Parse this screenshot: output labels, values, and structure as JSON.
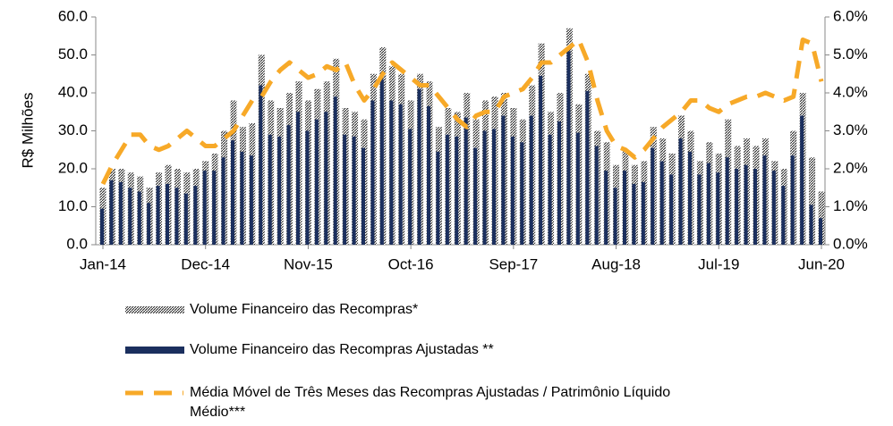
{
  "chart_data": {
    "type": "bar",
    "y_label": "R$ Milhões",
    "categories": [
      "Jan-14",
      null,
      null,
      null,
      null,
      null,
      null,
      null,
      null,
      null,
      null,
      "Dec-14",
      null,
      null,
      null,
      null,
      null,
      null,
      null,
      null,
      null,
      null,
      "Nov-15",
      null,
      null,
      null,
      null,
      null,
      null,
      null,
      null,
      null,
      null,
      "Oct-16",
      null,
      null,
      null,
      null,
      null,
      null,
      null,
      null,
      null,
      null,
      "Sep-17",
      null,
      null,
      null,
      null,
      null,
      null,
      null,
      null,
      null,
      null,
      "Aug-18",
      null,
      null,
      null,
      null,
      null,
      null,
      null,
      null,
      null,
      null,
      "Jul-19",
      null,
      null,
      null,
      null,
      null,
      null,
      null,
      null,
      null,
      null,
      "Jun-20"
    ],
    "series": [
      {
        "name": "Volume Financeiro das Recompras*",
        "color": "#222222",
        "style": "hatched",
        "values": [
          15,
          20,
          20,
          19,
          18,
          15,
          19,
          21,
          20,
          19,
          20,
          22,
          24,
          30,
          38,
          31,
          32,
          50,
          38,
          36,
          40,
          43,
          38,
          41,
          43,
          49,
          36,
          35,
          33,
          45,
          52,
          47,
          45,
          38,
          45,
          43,
          31,
          36,
          35,
          40,
          33,
          38,
          39,
          40,
          36,
          33,
          42,
          53,
          35,
          40,
          57,
          37,
          45,
          30,
          27,
          21,
          25,
          21,
          22,
          31,
          28,
          24,
          34,
          30,
          22,
          27,
          24,
          33,
          26,
          28,
          26,
          28,
          22,
          20,
          30,
          40,
          23,
          14
        ]
      },
      {
        "name": "Volume Financeiro das Recompras Ajustadas **",
        "color": "#1b2f5e",
        "style": "solid",
        "values": [
          9.5,
          17,
          16.5,
          15,
          14,
          11,
          15.5,
          16,
          15,
          13.5,
          15.5,
          19.5,
          19.5,
          23,
          27.5,
          24.5,
          23.5,
          42,
          29,
          28.5,
          31.5,
          35,
          30,
          33,
          35,
          39,
          29,
          28.5,
          25.5,
          38,
          43.5,
          38,
          37,
          30.5,
          41,
          36.5,
          24.5,
          29,
          28.5,
          33.5,
          25.5,
          30,
          30.5,
          34,
          28.5,
          27,
          34,
          44.5,
          29,
          32.5,
          51,
          29.5,
          40.5,
          26,
          19.5,
          15,
          19.5,
          16,
          16.5,
          25.5,
          22,
          18.5,
          28,
          24.5,
          18.5,
          21.5,
          19,
          23,
          20,
          21,
          20,
          23.5,
          19.5,
          15.5,
          23.5,
          34,
          10.5,
          7
        ]
      },
      {
        "name": "Média Móvel de Três Meses das Recompras Ajustadas / Patrimônio Líquido Médio***",
        "color": "#f7a928",
        "type": "line",
        "style": "dashed",
        "axis": "y2",
        "values": [
          1.6,
          2.1,
          2.5,
          2.9,
          2.9,
          2.6,
          2.5,
          2.6,
          2.8,
          3.0,
          2.8,
          2.6,
          2.6,
          2.8,
          3.0,
          3.4,
          3.8,
          3.9,
          4.3,
          4.6,
          4.8,
          4.6,
          4.4,
          4.5,
          4.7,
          4.6,
          4.8,
          4.2,
          3.8,
          4.1,
          4.5,
          4.8,
          4.6,
          4.4,
          4.2,
          4.2,
          3.9,
          3.6,
          3.3,
          3.1,
          3.4,
          3.5,
          3.5,
          3.9,
          4.0,
          4.1,
          4.4,
          4.8,
          4.8,
          5.0,
          5.2,
          5.4,
          4.8,
          3.8,
          3.0,
          2.6,
          2.5,
          2.3,
          2.5,
          2.8,
          3.1,
          3.3,
          3.5,
          3.8,
          3.8,
          3.6,
          3.5,
          3.7,
          3.8,
          3.9,
          3.9,
          4.0,
          3.9,
          3.8,
          3.9,
          5.4,
          5.3,
          4.3
        ]
      }
    ],
    "ylim": [
      0,
      60
    ],
    "yticks": [
      {
        "value": 0,
        "label": "0.0"
      },
      {
        "value": 10,
        "label": "10.0"
      },
      {
        "value": 20,
        "label": "20.0"
      },
      {
        "value": 30,
        "label": "30.0"
      },
      {
        "value": 40,
        "label": "40.0"
      },
      {
        "value": 50,
        "label": "50.0"
      },
      {
        "value": 60,
        "label": "60.0"
      }
    ],
    "y2lim": [
      0,
      6
    ],
    "y2ticks": [
      {
        "value": 0,
        "label": "0.0%"
      },
      {
        "value": 1,
        "label": "1.0%"
      },
      {
        "value": 2,
        "label": "2.0%"
      },
      {
        "value": 3,
        "label": "3.0%"
      },
      {
        "value": 4,
        "label": "4.0%"
      },
      {
        "value": 5,
        "label": "5.0%"
      },
      {
        "value": 6,
        "label": "6.0%"
      }
    ],
    "legend": "bottom"
  }
}
